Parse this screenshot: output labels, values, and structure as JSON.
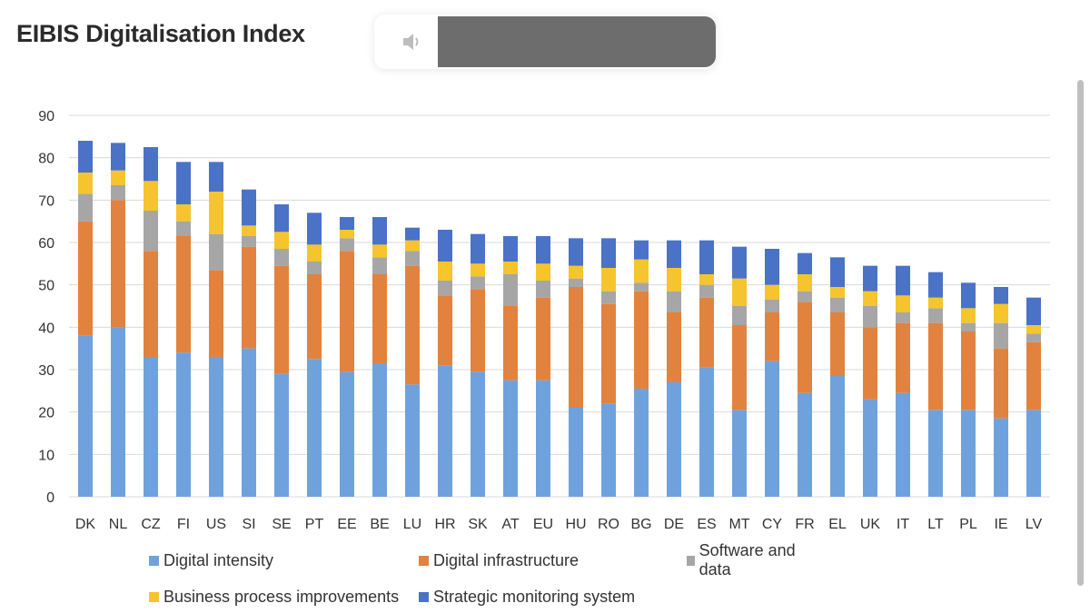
{
  "title": "EIBIS Digitalisation Index",
  "icons": {
    "speaker": "speaker-icon"
  },
  "colors": {
    "Digital intensity": "#6fa2dc",
    "Digital infrastructure": "#e2823f",
    "Software and data": "#a6a6a6",
    "Business process improvements": "#f6c42c",
    "Strategic monitoring system": "#4a72c6",
    "grid": "#d9d9d9"
  },
  "chart_data": {
    "type": "bar",
    "stacked": true,
    "title": "EIBIS Digitalisation Index",
    "xlabel": "",
    "ylabel": "",
    "ylim": [
      0,
      90
    ],
    "yticks": [
      0,
      10,
      20,
      30,
      40,
      50,
      60,
      70,
      80,
      90
    ],
    "grid": true,
    "legend_position": "bottom",
    "categories": [
      "DK",
      "NL",
      "CZ",
      "FI",
      "US",
      "SI",
      "SE",
      "PT",
      "EE",
      "BE",
      "LU",
      "HR",
      "SK",
      "AT",
      "EU",
      "HU",
      "RO",
      "BG",
      "DE",
      "ES",
      "MT",
      "CY",
      "FR",
      "EL",
      "UK",
      "IT",
      "LT",
      "PL",
      "IE",
      "LV"
    ],
    "series": [
      {
        "name": "Digital intensity",
        "values": [
          38,
          40,
          33,
          34,
          33,
          35,
          29,
          32.5,
          29.5,
          31.5,
          26.5,
          31,
          29.5,
          27.5,
          27.5,
          21,
          22,
          25.5,
          27,
          30.5,
          20.5,
          32,
          24.5,
          28.5,
          23,
          24.5,
          20.5,
          20.5,
          18.5,
          20.5
        ]
      },
      {
        "name": "Digital infrastructure",
        "values": [
          27,
          30,
          25,
          27.5,
          20.5,
          24,
          25.5,
          20,
          28.5,
          21,
          28,
          16.5,
          19.5,
          17.5,
          19.5,
          28.5,
          23.5,
          23,
          16.5,
          16.5,
          20,
          11.5,
          21.5,
          15,
          17,
          16.5,
          20.5,
          18.5,
          16.5,
          16
        ]
      },
      {
        "name": "Software and data",
        "values": [
          6.5,
          3.5,
          9.5,
          3.5,
          8.5,
          2.5,
          4,
          3,
          3,
          4,
          3.5,
          3.5,
          3,
          7.5,
          4,
          2,
          3,
          2,
          5,
          3,
          4.5,
          3,
          2.5,
          3.5,
          5,
          2.5,
          3.5,
          2,
          6,
          2
        ]
      },
      {
        "name": "Business process improvements",
        "values": [
          5,
          3.5,
          7,
          4,
          10,
          2.5,
          4,
          4,
          2,
          3,
          2.5,
          4.5,
          3,
          3,
          4,
          3,
          5.5,
          5.5,
          5.5,
          2.5,
          6.5,
          3.5,
          4,
          2.5,
          3.5,
          4,
          2.5,
          3.5,
          4.5,
          2
        ]
      },
      {
        "name": "Strategic monitoring system",
        "values": [
          7.5,
          6.5,
          8,
          10,
          7,
          8.5,
          6.5,
          7.5,
          3,
          6.5,
          3,
          7.5,
          7,
          6,
          6.5,
          6.5,
          7,
          4.5,
          6.5,
          8,
          7.5,
          8.5,
          5,
          7,
          6,
          7,
          6,
          6,
          4,
          6.5
        ]
      }
    ]
  }
}
